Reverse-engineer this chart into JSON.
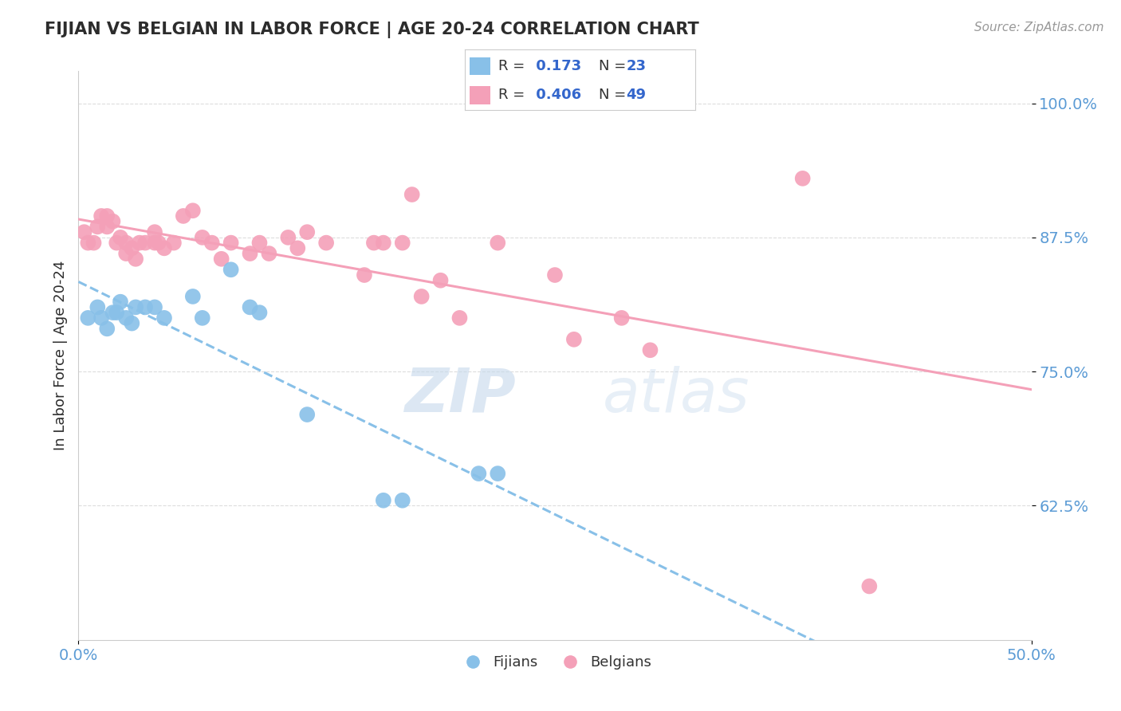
{
  "title": "FIJIAN VS BELGIAN IN LABOR FORCE | AGE 20-24 CORRELATION CHART",
  "source_text": "Source: ZipAtlas.com",
  "ylabel": "In Labor Force | Age 20-24",
  "xlim": [
    0.0,
    0.5
  ],
  "ylim": [
    0.5,
    1.03
  ],
  "yticks": [
    0.625,
    0.75,
    0.875,
    1.0
  ],
  "ytick_labels": [
    "62.5%",
    "75.0%",
    "87.5%",
    "100.0%"
  ],
  "xticks": [
    0.0,
    0.5
  ],
  "xtick_labels": [
    "0.0%",
    "50.0%"
  ],
  "fijian_color": "#88C0E8",
  "belgian_color": "#F4A0B8",
  "fijian_R": 0.173,
  "fijian_N": 23,
  "belgian_R": 0.406,
  "belgian_N": 49,
  "fijian_x": [
    0.005,
    0.01,
    0.012,
    0.015,
    0.018,
    0.02,
    0.022,
    0.025,
    0.028,
    0.03,
    0.035,
    0.04,
    0.045,
    0.06,
    0.065,
    0.08,
    0.09,
    0.095,
    0.12,
    0.16,
    0.17,
    0.21,
    0.22
  ],
  "fijian_y": [
    0.8,
    0.81,
    0.8,
    0.79,
    0.805,
    0.805,
    0.815,
    0.8,
    0.795,
    0.81,
    0.81,
    0.81,
    0.8,
    0.82,
    0.8,
    0.845,
    0.81,
    0.805,
    0.71,
    0.63,
    0.63,
    0.655,
    0.655
  ],
  "belgian_x": [
    0.003,
    0.005,
    0.008,
    0.01,
    0.012,
    0.015,
    0.015,
    0.018,
    0.02,
    0.022,
    0.025,
    0.025,
    0.028,
    0.03,
    0.032,
    0.035,
    0.04,
    0.04,
    0.042,
    0.045,
    0.05,
    0.055,
    0.06,
    0.065,
    0.07,
    0.075,
    0.08,
    0.09,
    0.095,
    0.1,
    0.11,
    0.115,
    0.12,
    0.13,
    0.15,
    0.155,
    0.16,
    0.17,
    0.175,
    0.18,
    0.19,
    0.2,
    0.22,
    0.25,
    0.26,
    0.285,
    0.3,
    0.38,
    0.415
  ],
  "belgian_y": [
    0.88,
    0.87,
    0.87,
    0.885,
    0.895,
    0.895,
    0.885,
    0.89,
    0.87,
    0.875,
    0.87,
    0.86,
    0.865,
    0.855,
    0.87,
    0.87,
    0.88,
    0.87,
    0.87,
    0.865,
    0.87,
    0.895,
    0.9,
    0.875,
    0.87,
    0.855,
    0.87,
    0.86,
    0.87,
    0.86,
    0.875,
    0.865,
    0.88,
    0.87,
    0.84,
    0.87,
    0.87,
    0.87,
    0.915,
    0.82,
    0.835,
    0.8,
    0.87,
    0.84,
    0.78,
    0.8,
    0.77,
    0.93,
    0.55
  ],
  "watermark_zip": "ZIP",
  "watermark_atlas": "atlas",
  "background_color": "#FFFFFF",
  "grid_color": "#DDDDDD",
  "title_color": "#2C2C2C",
  "tick_color": "#5B9BD5",
  "legend_color": "#2C2C2C",
  "r_n_color": "#3366CC"
}
